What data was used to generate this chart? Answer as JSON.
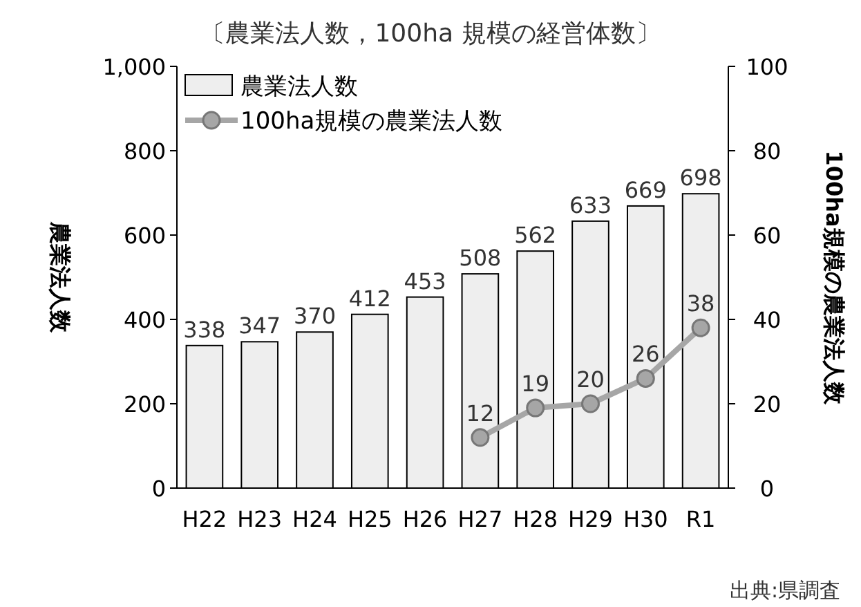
{
  "chart_data": {
    "type": "bar",
    "title": "〔農業法人数，100ha 規模の経営体数〕",
    "categories": [
      "H22",
      "H23",
      "H24",
      "H25",
      "H26",
      "H27",
      "H28",
      "H29",
      "H30",
      "R1"
    ],
    "series": [
      {
        "name": "農業法人数",
        "color": "#eeeeee",
        "values": [
          338,
          347,
          370,
          412,
          453,
          508,
          562,
          633,
          669,
          698
        ]
      },
      {
        "name": "100ha規模の農業法人数",
        "type": "line",
        "axis": "y2",
        "color": "#a6a6a6",
        "marker": "circle",
        "values": [
          null,
          null,
          null,
          null,
          null,
          12,
          19,
          20,
          26,
          38
        ]
      }
    ],
    "ylabel": "農業法人数",
    "y2label": "100ha規模の農業法人数",
    "ylim": [
      0,
      1000
    ],
    "yticks": [
      0,
      {
        "value": 200,
        "label": "200"
      },
      400,
      600,
      800,
      {
        "value": 1000,
        "label": "1,000"
      }
    ],
    "y2lim": [
      0,
      100
    ],
    "y2ticks": [
      0,
      20,
      40,
      60,
      80,
      100
    ],
    "data_labels": true,
    "legend": "top left",
    "grid": false,
    "annotations": [
      "出典:県調査"
    ]
  }
}
